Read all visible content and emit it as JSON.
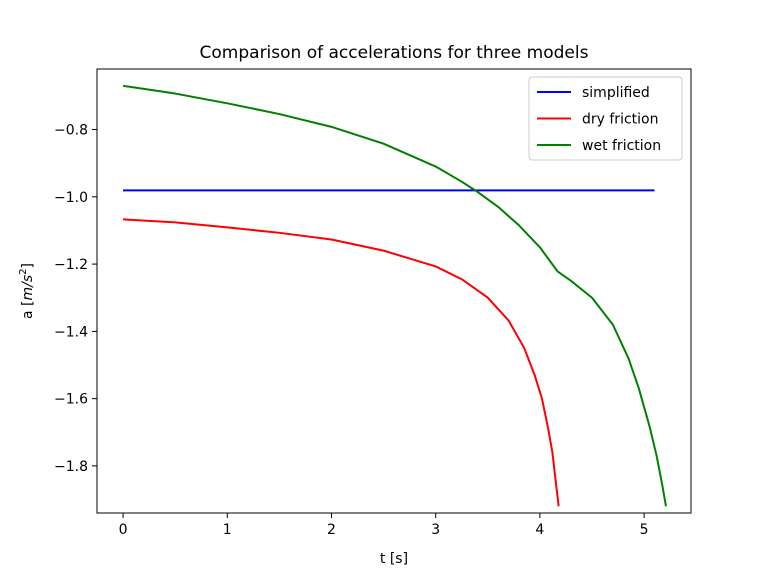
{
  "chart_data": {
    "type": "line",
    "title": "Comparison of accelerations for three models",
    "xlabel": "t [s]",
    "ylabel": "a [m/s²]",
    "ylabel_parts": {
      "prefix": "a [",
      "var": "m",
      "slash": "/",
      "var2": "s",
      "sup": "2",
      "suffix": "]"
    },
    "xlim": [
      -0.25,
      5.45
    ],
    "ylim": [
      -1.94,
      -0.62
    ],
    "xticks": [
      0,
      1,
      2,
      3,
      4,
      5
    ],
    "xtick_labels": [
      "0",
      "1",
      "2",
      "3",
      "4",
      "5"
    ],
    "yticks": [
      -0.8,
      -1.0,
      -1.2,
      -1.4,
      -1.6,
      -1.8
    ],
    "ytick_labels": [
      "−0.8",
      "−1.0",
      "−1.2",
      "−1.4",
      "−1.6",
      "−1.8"
    ],
    "grid": false,
    "legend_position": "top-right",
    "series": [
      {
        "name": "simplified",
        "color": "#0000ff",
        "x": [
          0,
          5.1
        ],
        "y": [
          -0.981,
          -0.981
        ]
      },
      {
        "name": "dry friction",
        "color": "#ff0000",
        "x": [
          0,
          0.5,
          1.0,
          1.5,
          2.0,
          2.5,
          3.0,
          3.25,
          3.5,
          3.7,
          3.85,
          3.95,
          4.02,
          4.08,
          4.12,
          4.15,
          4.18
        ],
        "y": [
          -1.067,
          -1.076,
          -1.091,
          -1.107,
          -1.127,
          -1.16,
          -1.207,
          -1.245,
          -1.3,
          -1.368,
          -1.45,
          -1.53,
          -1.6,
          -1.69,
          -1.76,
          -1.84,
          -1.92
        ]
      },
      {
        "name": "wet friction",
        "color": "#008000",
        "x": [
          0,
          0.5,
          1.0,
          1.5,
          2.0,
          2.5,
          3.0,
          3.25,
          3.4,
          3.6,
          3.8,
          4.0,
          4.17,
          4.3,
          4.5,
          4.7,
          4.85,
          4.95,
          5.05,
          5.12,
          5.17,
          5.21
        ],
        "y": [
          -0.67,
          -0.693,
          -0.722,
          -0.754,
          -0.792,
          -0.842,
          -0.91,
          -0.955,
          -0.985,
          -1.03,
          -1.085,
          -1.15,
          -1.222,
          -1.25,
          -1.3,
          -1.38,
          -1.48,
          -1.57,
          -1.68,
          -1.77,
          -1.85,
          -1.92
        ]
      }
    ]
  }
}
